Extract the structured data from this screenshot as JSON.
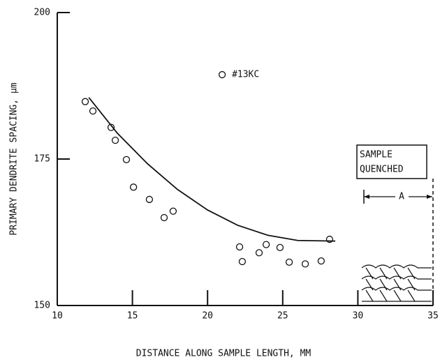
{
  "chart_data": {
    "type": "scatter",
    "xlabel": "DISTANCE ALONG SAMPLE LENGTH, MM",
    "ylabel": "PRIMARY DENDRITE SPACING, µm",
    "x": [
      11.86,
      12.37,
      13.58,
      13.86,
      14.6,
      15.07,
      16.13,
      17.11,
      17.71,
      22.13,
      22.31,
      23.43,
      23.9,
      24.82,
      25.43,
      26.5,
      27.56,
      28.12
    ],
    "values": [
      184.8,
      183.2,
      180.4,
      178.2,
      174.9,
      170.2,
      168.1,
      165.0,
      166.1,
      160.0,
      157.5,
      159.0,
      160.4,
      159.9,
      157.4,
      157.1,
      157.6,
      161.3
    ],
    "legend": {
      "x": 20.97,
      "y": 189.4,
      "label": "#13KC"
    },
    "fit": {
      "x": [
        12.1,
        14,
        16,
        18,
        20,
        22,
        24,
        26,
        28.5
      ],
      "y": [
        185.5,
        179.4,
        174.2,
        169.8,
        166.3,
        163.7,
        162.0,
        161.1,
        161.0
      ]
    },
    "annotation": [
      "SAMPLE",
      "QUENCHED"
    ],
    "region_label": "A",
    "xlim": [
      10,
      35
    ],
    "xticks": [
      10,
      15,
      20,
      25,
      30,
      35
    ],
    "ylim": [
      150,
      200
    ],
    "yticks": [
      150,
      175,
      200
    ],
    "color": "#111"
  }
}
